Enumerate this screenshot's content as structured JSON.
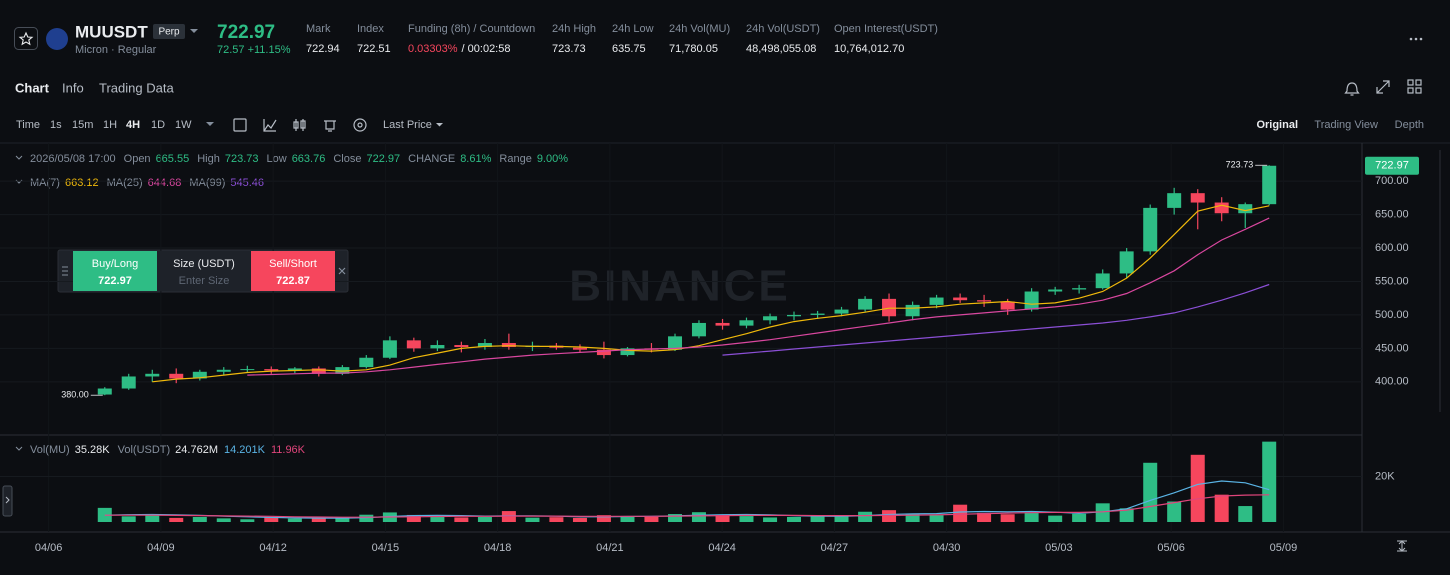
{
  "header": {
    "symbol": "MUUSDT",
    "badge": "Perp",
    "subtitle": "Micron · Regular",
    "price": "722.97",
    "change": "72.57 +11.15%",
    "stats": [
      {
        "label": "Mark",
        "value": "722.94"
      },
      {
        "label": "Index",
        "value": "722.51"
      },
      {
        "label": "Funding (8h) / Countdown",
        "value": "0.03303%",
        "value2": "/ 00:02:58"
      },
      {
        "label": "24h High",
        "value": "723.73"
      },
      {
        "label": "24h Low",
        "value": "635.75"
      },
      {
        "label": "24h Vol(MU)",
        "value": "71,780.05"
      },
      {
        "label": "24h Vol(USDT)",
        "value": "48,498,055.08"
      },
      {
        "label": "Open Interest(USDT)",
        "value": "10,764,012.70"
      }
    ]
  },
  "tabs": [
    "Chart",
    "Info",
    "Trading Data"
  ],
  "active_tab": "Chart",
  "toolbar": {
    "intervals": [
      "Time",
      "1s",
      "15m",
      "1H",
      "4H",
      "1D",
      "1W"
    ],
    "active_interval": "4H",
    "price_type": "Last Price",
    "views": [
      "Original",
      "Trading View",
      "Depth"
    ],
    "active_view": "Original"
  },
  "legend": {
    "time": "2026/05/08 17:00",
    "items": [
      {
        "label": "Open",
        "value": "665.55"
      },
      {
        "label": "High",
        "value": "723.73"
      },
      {
        "label": "Low",
        "value": "663.76"
      },
      {
        "label": "Close",
        "value": "722.97"
      },
      {
        "label": "CHANGE",
        "value": "8.61%"
      },
      {
        "label": "Range",
        "value": "9.00%"
      }
    ]
  },
  "order": {
    "buy_label": "Buy/Long",
    "buy_price": "722.97",
    "size_label": "Size (USDT)",
    "size_placeholder": "Enter Size",
    "sell_label": "Sell/Short",
    "sell_price": "722.87"
  },
  "volume_legend": {
    "items": [
      {
        "label": "Vol(MU)",
        "value": "35.28K"
      },
      {
        "label": "Vol(USDT)",
        "value": "24.762M"
      }
    ],
    "ma_values": [
      "14.201K",
      "11.96K"
    ]
  },
  "watermark": "BINANCE",
  "chart_data": {
    "type": "candlestick",
    "up_color": "#2ebd85",
    "down_color": "#f6465d",
    "grid": true,
    "x": [
      1.5,
      2.14,
      2.77,
      3.41,
      4.04,
      4.68,
      5.31,
      5.95,
      6.58,
      7.22,
      7.85,
      8.49,
      9.12,
      9.76,
      10.39,
      11.03,
      11.66,
      12.3,
      12.93,
      13.57,
      14.2,
      14.84,
      15.47,
      16.11,
      16.74,
      17.38,
      18.01,
      18.65,
      19.28,
      19.92,
      20.55,
      21.19,
      21.82,
      22.46,
      23.09,
      23.73,
      24.36,
      25.0,
      25.63,
      26.27,
      26.9,
      27.54,
      28.17,
      28.81,
      29.44,
      30.08,
      30.71,
      31.35,
      31.98,
      32.62
    ],
    "open": [
      381,
      390,
      408,
      412,
      405,
      415,
      418,
      419,
      417,
      420,
      412,
      422,
      436,
      462,
      450,
      455,
      452,
      458,
      452,
      454,
      451,
      448,
      440,
      450,
      448,
      468,
      488,
      484,
      492,
      498,
      500,
      502,
      508,
      524,
      498,
      515,
      526,
      522,
      520,
      508,
      535,
      538,
      540,
      562,
      595,
      660,
      682,
      668,
      652,
      665.55
    ],
    "high": [
      392,
      412,
      418,
      420,
      418,
      422,
      424,
      423,
      422,
      423,
      425,
      440,
      468,
      466,
      462,
      460,
      464,
      472,
      460,
      458,
      456,
      460,
      452,
      458,
      472,
      492,
      494,
      496,
      502,
      505,
      506,
      512,
      528,
      532,
      520,
      530,
      532,
      530,
      524,
      540,
      542,
      545,
      568,
      600,
      665,
      690,
      688,
      676,
      668,
      723.73
    ],
    "low": [
      380,
      388,
      400,
      398,
      402,
      410,
      414,
      412,
      413,
      408,
      410,
      420,
      434,
      445,
      446,
      444,
      448,
      448,
      446,
      448,
      444,
      435,
      438,
      444,
      446,
      465,
      478,
      480,
      486,
      492,
      494,
      498,
      505,
      490,
      492,
      510,
      518,
      512,
      500,
      505,
      530,
      532,
      538,
      555,
      590,
      650,
      628,
      640,
      630,
      663.76
    ],
    "close": [
      390,
      408,
      412,
      405,
      415,
      418,
      419,
      417,
      420,
      412,
      422,
      436,
      462,
      450,
      455,
      452,
      458,
      452,
      454,
      451,
      448,
      440,
      450,
      448,
      468,
      488,
      484,
      492,
      498,
      500,
      502,
      508,
      524,
      498,
      515,
      526,
      522,
      520,
      508,
      535,
      538,
      540,
      562,
      595,
      660,
      682,
      668,
      652,
      665.55,
      722.97
    ],
    "volume": [
      6200,
      2500,
      3000,
      1800,
      2200,
      1600,
      1200,
      2000,
      1500,
      1600,
      2100,
      3200,
      4200,
      3100,
      2300,
      2000,
      2200,
      4800,
      1900,
      2100,
      1800,
      3000,
      2400,
      2200,
      3500,
      4300,
      3000,
      2600,
      2000,
      2200,
      2800,
      2400,
      4500,
      5200,
      3600,
      3000,
      7600,
      4000,
      3400,
      4200,
      2800,
      3600,
      8200,
      6000,
      26000,
      9000,
      29500,
      12000,
      7000,
      35280
    ],
    "ma": [
      {
        "name": "MA(7)",
        "color": "#f0b90b",
        "values": [
          null,
          null,
          400,
          404,
          406,
          410,
          414,
          416,
          417,
          418,
          416,
          418,
          425,
          436,
          443,
          450,
          453,
          454,
          453,
          453,
          452,
          450,
          447,
          446,
          448,
          454,
          463,
          472,
          482,
          490,
          495,
          499,
          504,
          510,
          510,
          512,
          516,
          518,
          520,
          516,
          518,
          525,
          535,
          555,
          585,
          620,
          655,
          664,
          656,
          663.12
        ]
      },
      {
        "name": "MA(25)",
        "color": "#d9479f",
        "values": [
          null,
          null,
          null,
          null,
          null,
          null,
          410,
          411,
          412,
          413,
          413,
          415,
          418,
          422,
          426,
          430,
          434,
          437,
          440,
          442,
          444,
          446,
          448,
          449,
          450,
          452,
          455,
          459,
          463,
          468,
          473,
          478,
          483,
          488,
          493,
          497,
          500,
          503,
          506,
          509,
          512,
          516,
          522,
          532,
          548,
          566,
          590,
          612,
          628,
          644.68
        ]
      },
      {
        "name": "MA(99)",
        "color": "#8b4fd6",
        "values": [
          null,
          null,
          null,
          null,
          null,
          null,
          null,
          null,
          null,
          null,
          null,
          null,
          null,
          null,
          null,
          null,
          null,
          null,
          null,
          null,
          null,
          null,
          null,
          null,
          null,
          null,
          440,
          443,
          446,
          449,
          452,
          455,
          458,
          461,
          464,
          467,
          470,
          473,
          476,
          479,
          482,
          485,
          488,
          492,
          497,
          503,
          512,
          522,
          533,
          545.46
        ]
      }
    ],
    "volume_ma": [
      {
        "color": "#5ab4e5",
        "values": [
          3000,
          3200,
          3300,
          3100,
          2900,
          2600,
          2300,
          2000,
          1800,
          1700,
          1700,
          1900,
          2400,
          2800,
          2900,
          2800,
          2600,
          2700,
          2700,
          2600,
          2300,
          2300,
          2400,
          2500,
          2700,
          3000,
          3200,
          3300,
          3100,
          2800,
          2600,
          2500,
          2800,
          3300,
          3600,
          3700,
          4400,
          4600,
          4500,
          4600,
          4300,
          3800,
          4500,
          5800,
          9500,
          12800,
          16500,
          18000,
          17200,
          14201
        ]
      },
      {
        "color": "#e0457b",
        "values": [
          3000,
          3000,
          3000,
          2900,
          2800,
          2700,
          2600,
          2500,
          2300,
          2200,
          2100,
          2100,
          2200,
          2300,
          2400,
          2500,
          2500,
          2600,
          2600,
          2600,
          2500,
          2500,
          2500,
          2500,
          2600,
          2700,
          2800,
          2900,
          2900,
          2900,
          2800,
          2800,
          2800,
          2900,
          3000,
          3100,
          3400,
          3700,
          3900,
          4100,
          4200,
          4200,
          4500,
          5200,
          6800,
          8500,
          10200,
          11400,
          11800,
          11960
        ]
      }
    ],
    "last_price": 722.97,
    "annotations": [
      {
        "x": 32.62,
        "value": 723.73,
        "label": "723.73"
      },
      {
        "x": 1.5,
        "value": 380,
        "label": "380.00"
      }
    ],
    "xlim": [
      -1.3,
      35.1
    ],
    "xticks": [
      {
        "value": 0,
        "label": "04/06"
      },
      {
        "value": 3,
        "label": "04/09"
      },
      {
        "value": 6,
        "label": "04/12"
      },
      {
        "value": 9,
        "label": "04/15"
      },
      {
        "value": 12,
        "label": "04/18"
      },
      {
        "value": 15,
        "label": "04/21"
      },
      {
        "value": 18,
        "label": "04/24"
      },
      {
        "value": 21,
        "label": "04/27"
      },
      {
        "value": 24,
        "label": "04/30"
      },
      {
        "value": 27,
        "label": "05/03"
      },
      {
        "value": 30,
        "label": "05/06"
      },
      {
        "value": 33,
        "label": "05/09"
      }
    ],
    "ylim": [
      325,
      754
    ],
    "yticks": [
      {
        "value": 400,
        "label": "400.00"
      },
      {
        "value": 450,
        "label": "450.00"
      },
      {
        "value": 500,
        "label": "500.00"
      },
      {
        "value": 550,
        "label": "550.00"
      },
      {
        "value": 600,
        "label": "600.00"
      },
      {
        "value": 650,
        "label": "650.00"
      },
      {
        "value": 700,
        "label": "700.00"
      }
    ],
    "volume_ylim": [
      0,
      36000
    ],
    "volume_yticks": [
      {
        "value": 20000,
        "label": "20K"
      }
    ]
  }
}
